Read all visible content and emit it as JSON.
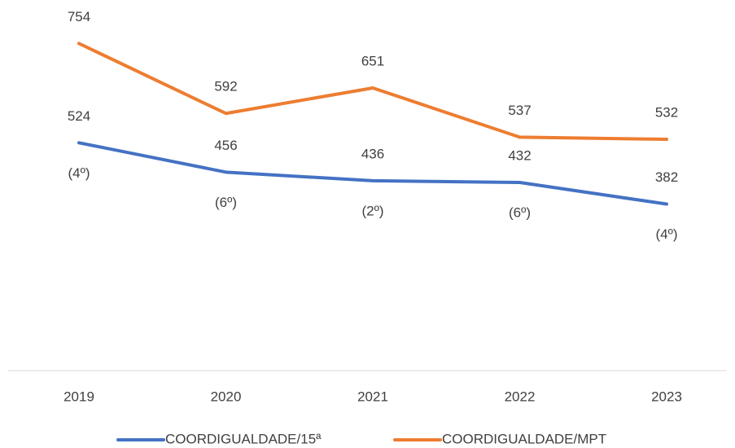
{
  "chart_data": {
    "type": "line",
    "categories": [
      "2019",
      "2020",
      "2021",
      "2022",
      "2023"
    ],
    "series": [
      {
        "name": "COORDIGUALDADE/15ª",
        "color": "#4472c4",
        "values": [
          524,
          456,
          436,
          432,
          382
        ]
      },
      {
        "name": "COORDIGUALDADE/MPT",
        "color": "#ed7d31",
        "values": [
          754,
          592,
          651,
          537,
          532
        ]
      }
    ],
    "annotations": [
      "(4º)",
      "(6º)",
      "(2º)",
      "(6º)",
      "(4º)"
    ],
    "ylim": [
      0,
      800
    ],
    "grid": false,
    "legend": "bottom"
  }
}
